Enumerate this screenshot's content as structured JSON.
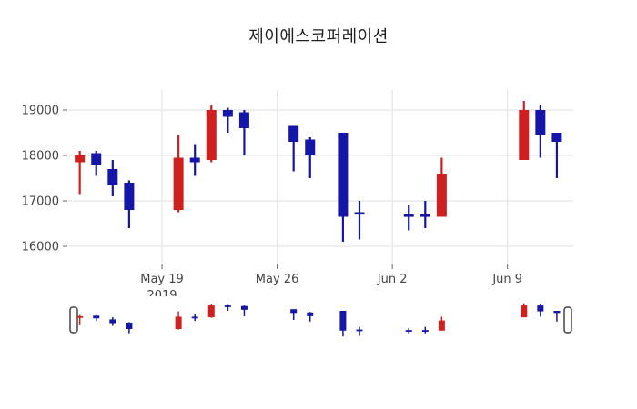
{
  "title": "제이에스코퍼레이션",
  "chart_data": {
    "type": "candlestick",
    "title": "제이에스코퍼레이션",
    "xlabel": "",
    "ylabel": "",
    "grid": true,
    "legend": "none",
    "x_range": [
      0.3,
      31.0
    ],
    "y_range": [
      15600,
      19440
    ],
    "y_ticks": [
      16000,
      17000,
      18000,
      19000
    ],
    "x_ticks": [
      {
        "day": 6,
        "label": "May 19",
        "sublabel": "2019"
      },
      {
        "day": 13,
        "label": "May 26",
        "sublabel": ""
      },
      {
        "day": 20,
        "label": "Jun 2",
        "sublabel": ""
      },
      {
        "day": 27,
        "label": "Jun 9",
        "sublabel": ""
      }
    ],
    "candles": [
      {
        "date": "May 14",
        "day": 1,
        "open": 17850,
        "high": 18100,
        "low": 17150,
        "close": 18000
      },
      {
        "date": "May 15",
        "day": 2,
        "open": 18050,
        "high": 18100,
        "low": 17550,
        "close": 17800
      },
      {
        "date": "May 16",
        "day": 3,
        "open": 17700,
        "high": 17900,
        "low": 17100,
        "close": 17350
      },
      {
        "date": "May 17",
        "day": 4,
        "open": 17400,
        "high": 17450,
        "low": 16400,
        "close": 16800
      },
      {
        "date": "May 20",
        "day": 7,
        "open": 16800,
        "high": 18450,
        "low": 16750,
        "close": 17950
      },
      {
        "date": "May 21",
        "day": 8,
        "open": 17950,
        "high": 18250,
        "low": 17550,
        "close": 17850
      },
      {
        "date": "May 22",
        "day": 9,
        "open": 17900,
        "high": 19100,
        "low": 17850,
        "close": 19000
      },
      {
        "date": "May 23",
        "day": 10,
        "open": 19000,
        "high": 19050,
        "low": 18500,
        "close": 18850
      },
      {
        "date": "May 24",
        "day": 11,
        "open": 18950,
        "high": 19000,
        "low": 18000,
        "close": 18600
      },
      {
        "date": "May 27",
        "day": 14,
        "open": 18650,
        "high": 18650,
        "low": 17650,
        "close": 18300
      },
      {
        "date": "May 28",
        "day": 15,
        "open": 18350,
        "high": 18400,
        "low": 17500,
        "close": 18000
      },
      {
        "date": "May 30",
        "day": 17,
        "open": 18500,
        "high": 18500,
        "low": 16100,
        "close": 16650
      },
      {
        "date": "May 31",
        "day": 18,
        "open": 16750,
        "high": 17000,
        "low": 16150,
        "close": 16700
      },
      {
        "date": "Jun 3",
        "day": 21,
        "open": 16700,
        "high": 16900,
        "low": 16350,
        "close": 16650
      },
      {
        "date": "Jun 4",
        "day": 22,
        "open": 16700,
        "high": 17000,
        "low": 16400,
        "close": 16650
      },
      {
        "date": "Jun 5",
        "day": 23,
        "open": 16650,
        "high": 17950,
        "low": 16650,
        "close": 17600
      },
      {
        "date": "Jun 10",
        "day": 28,
        "open": 17900,
        "high": 19200,
        "low": 17900,
        "close": 19000
      },
      {
        "date": "Jun 11",
        "day": 29,
        "open": 19000,
        "high": 19100,
        "low": 17950,
        "close": 18450
      },
      {
        "date": "Jun 12",
        "day": 30,
        "open": 18500,
        "high": 18500,
        "low": 17500,
        "close": 18300
      }
    ],
    "colors": {
      "up": "#d01f1f",
      "down": "#1515a8",
      "grid": "#e5e5e5",
      "tick": "#666666",
      "label": "#444444",
      "title": "#1f1f1f",
      "handle_fill": "#ffffff",
      "handle_border": "#444444",
      "background": "#ffffff"
    },
    "rangeslider": {
      "visible": true,
      "value_range": [
        15950,
        19350
      ]
    }
  }
}
